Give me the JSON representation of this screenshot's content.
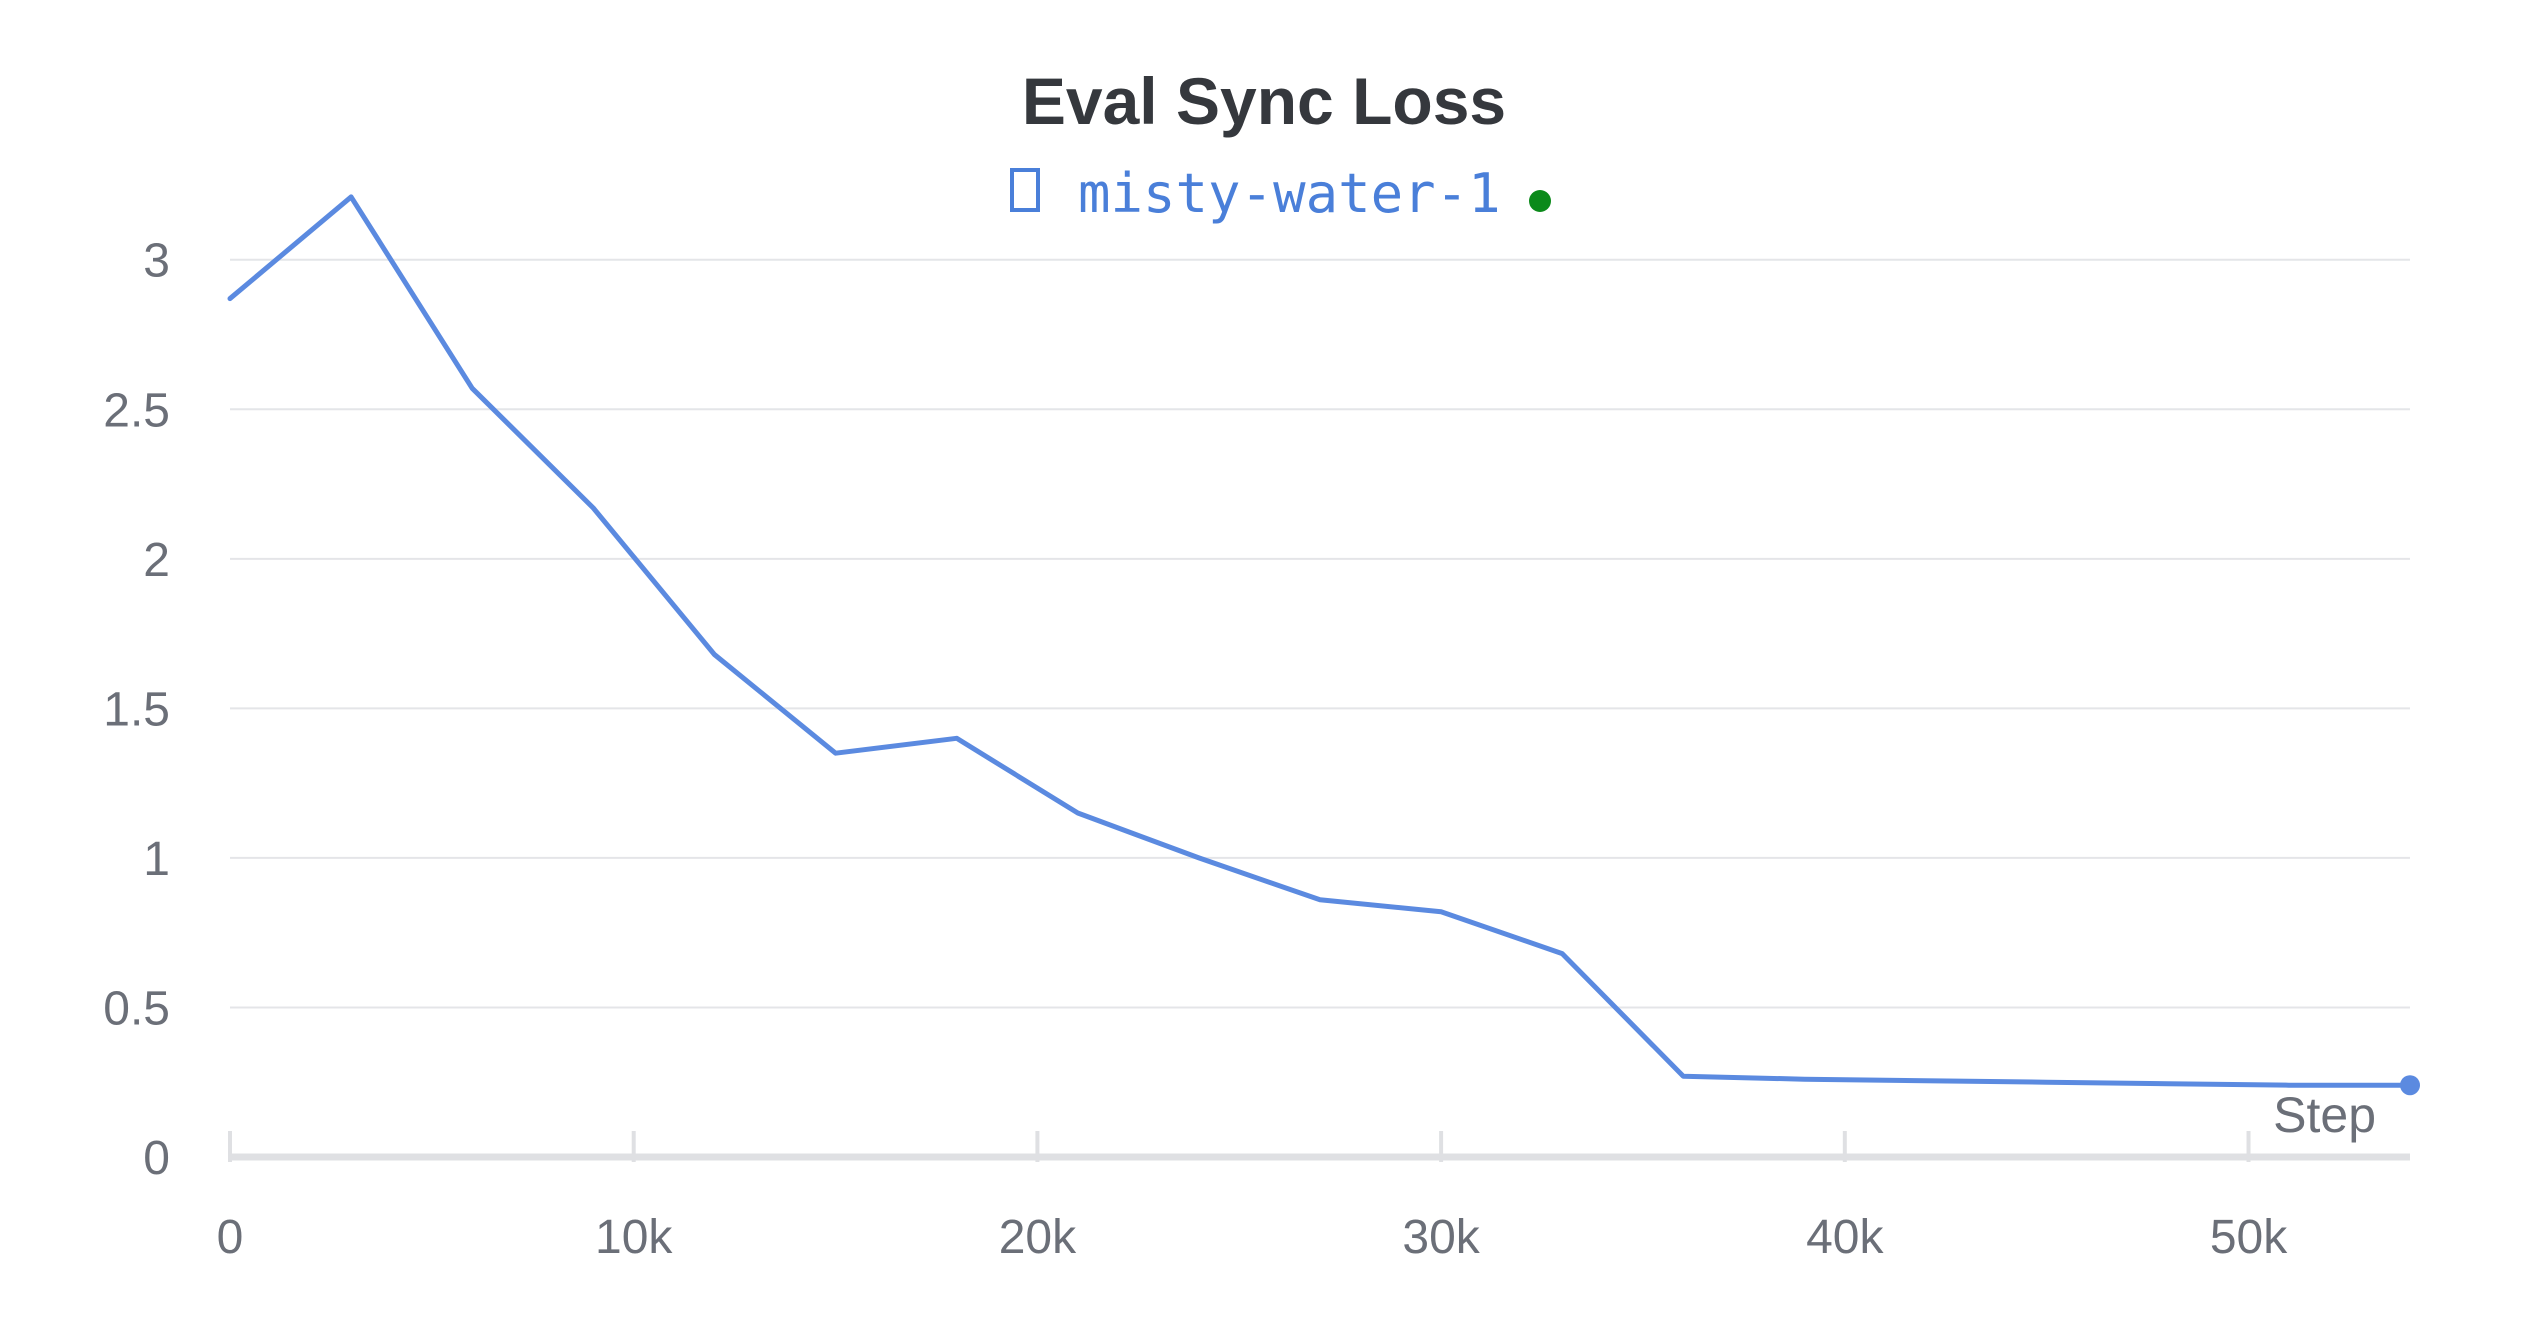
{
  "chart_data": {
    "type": "line",
    "title": "Eval Sync Loss",
    "xlabel": "Step",
    "ylabel": "",
    "xlim": [
      0,
      54000
    ],
    "ylim": [
      0,
      3.3
    ],
    "x_ticks": [
      0,
      10000,
      20000,
      30000,
      40000,
      50000
    ],
    "x_tick_labels": [
      "0",
      "10k",
      "20k",
      "30k",
      "40k",
      "50k"
    ],
    "y_ticks": [
      0,
      0.5,
      1,
      1.5,
      2,
      2.5,
      3
    ],
    "y_tick_labels": [
      "0",
      "0.5",
      "1",
      "1.5",
      "2",
      "2.5",
      "3"
    ],
    "grid": true,
    "legend_position": "top-center",
    "series": [
      {
        "name": "misty-water-1",
        "color": "#5b8ae0",
        "x": [
          0,
          3000,
          6000,
          9000,
          12000,
          15000,
          18000,
          21000,
          24000,
          27000,
          30000,
          33000,
          36000,
          39000,
          42000,
          45000,
          48000,
          51000,
          54000
        ],
        "y": [
          2.87,
          3.21,
          2.57,
          2.17,
          1.68,
          1.35,
          1.4,
          1.15,
          1.0,
          0.86,
          0.82,
          0.68,
          0.27,
          0.26,
          0.255,
          0.25,
          0.245,
          0.24,
          0.24
        ]
      }
    ],
    "legend_marker_icon": "square-outline-icon",
    "status_indicator_color": "#0b8a1a",
    "status_indicator_icon": "green-dot-icon"
  }
}
